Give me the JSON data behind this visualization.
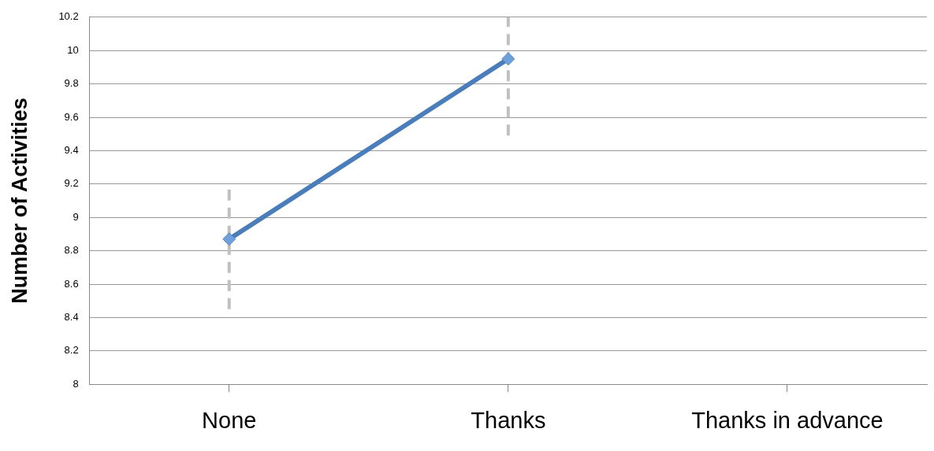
{
  "chart_data": {
    "type": "line",
    "ylabel": "Number of Activities",
    "categories": [
      "None",
      "Thanks",
      "Thanks in advance"
    ],
    "values": [
      8.87,
      9.95,
      null
    ],
    "errors": [
      [
        8.45,
        9.2
      ],
      [
        9.49,
        10.2
      ],
      null
    ],
    "color": "#4a7ebb",
    "marker": "diamond",
    "line_style": "solid",
    "ylim": [
      8,
      10.2
    ],
    "yticks": [
      8,
      8.2,
      8.4,
      8.6,
      8.8,
      9,
      9.2,
      9.4,
      9.6,
      9.8,
      10,
      10.2
    ],
    "grid": "y"
  }
}
